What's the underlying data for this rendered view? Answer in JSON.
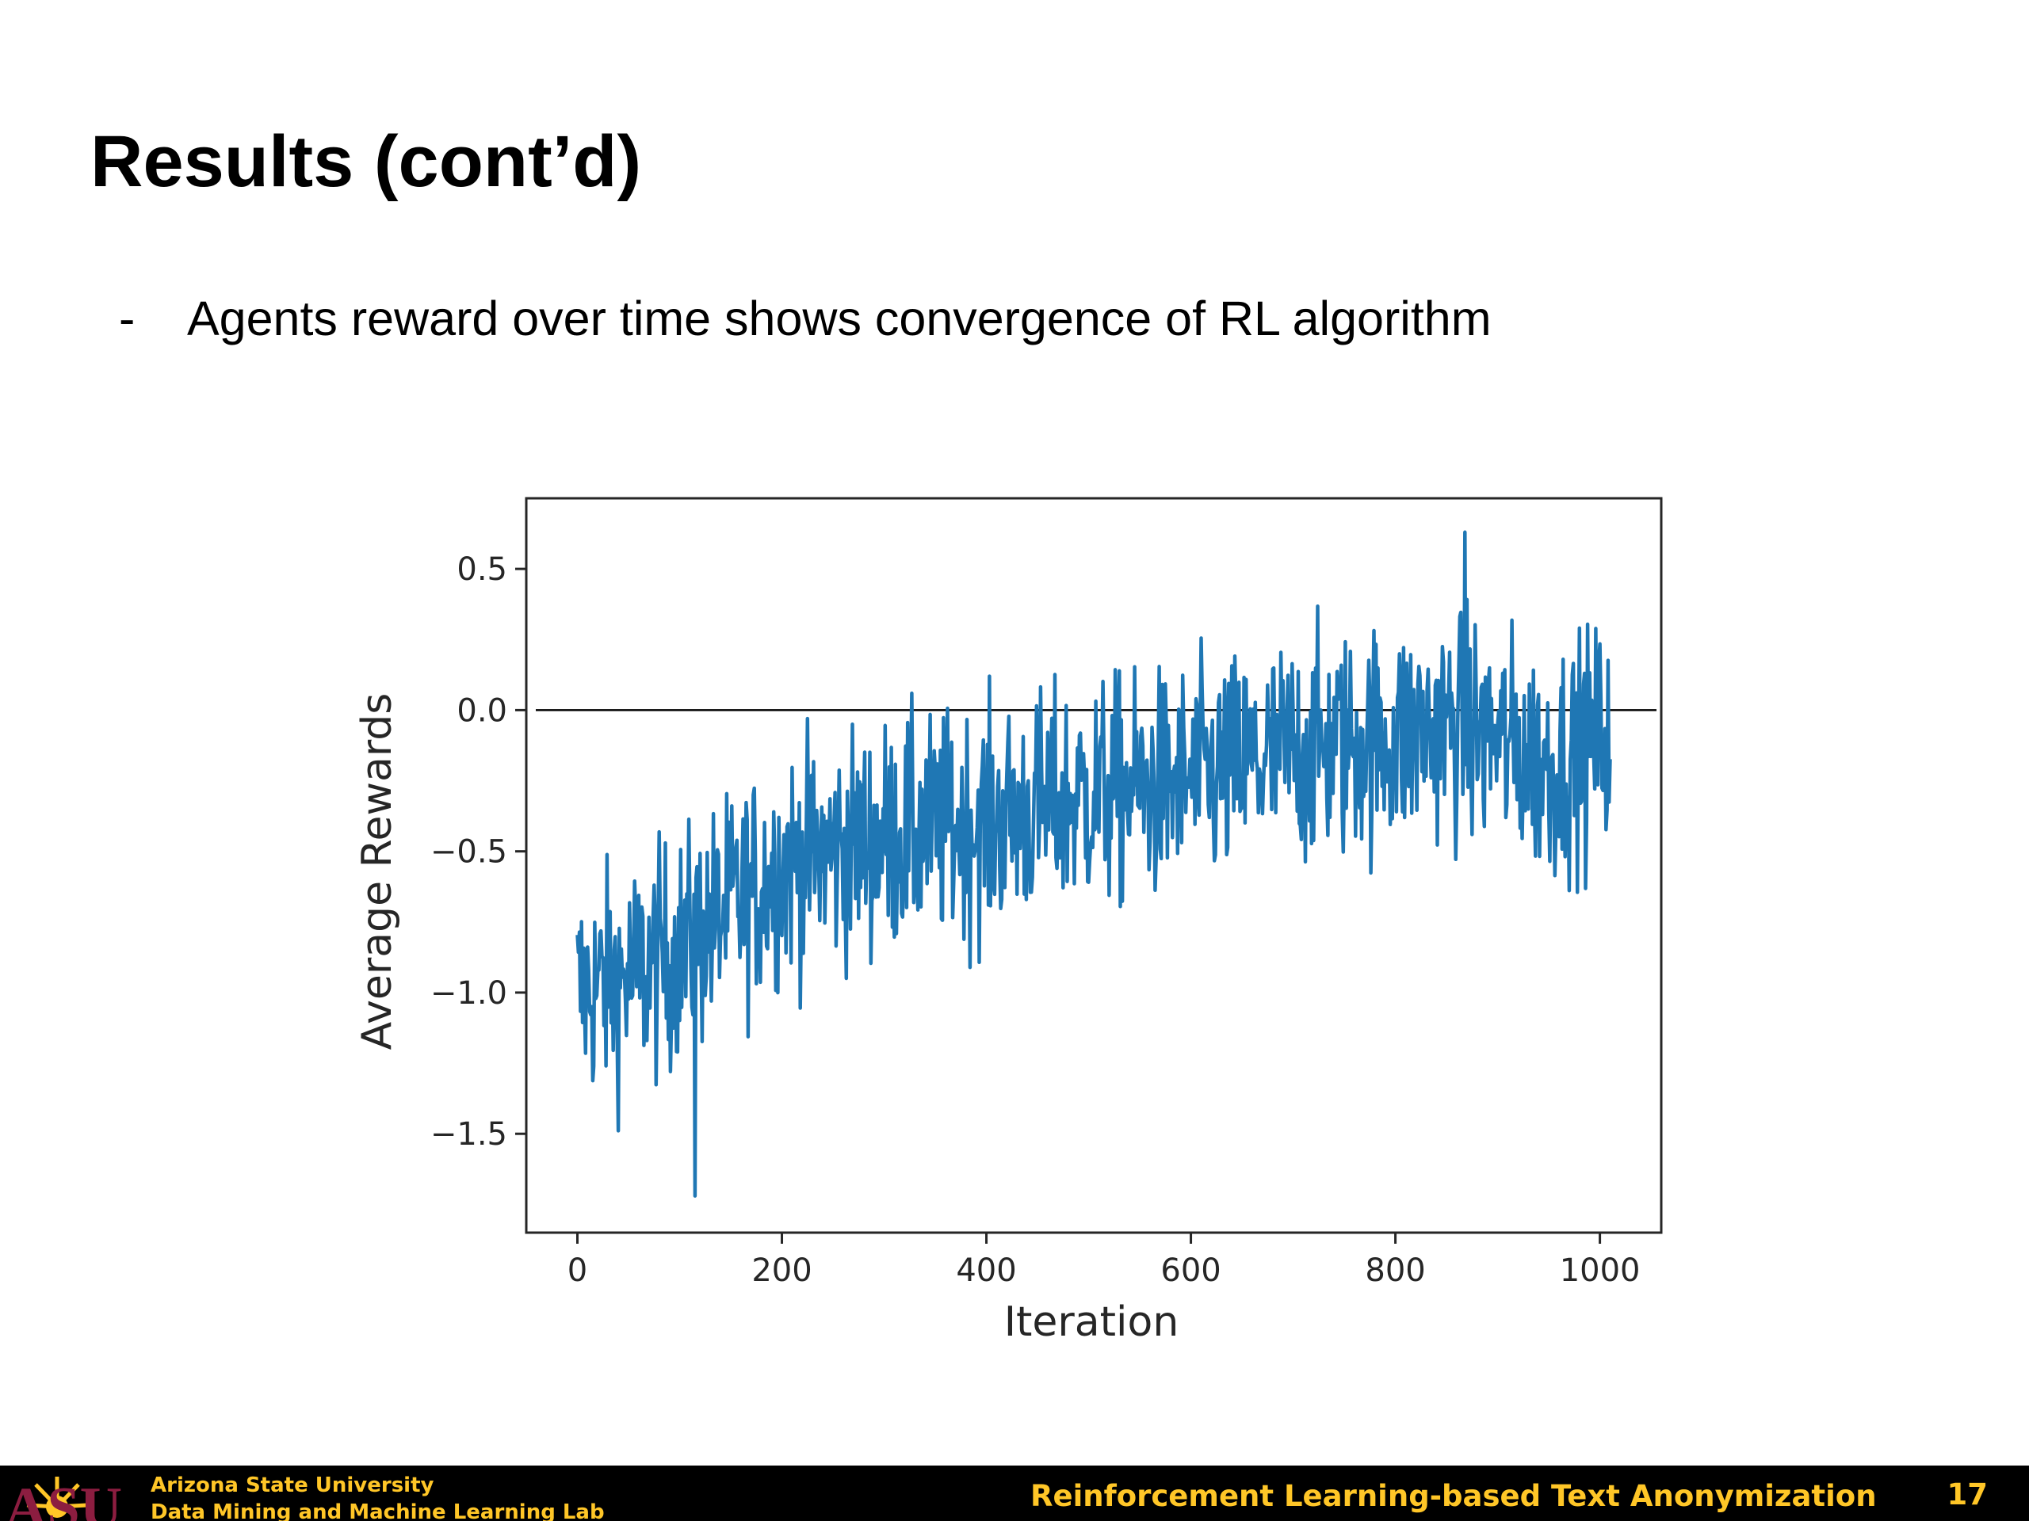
{
  "slide": {
    "title": "Results (cont’d)",
    "bullet_marker": "-",
    "bullet_text": "Agents reward over time shows convergence of RL algorithm"
  },
  "chart_data": {
    "type": "line",
    "title": "",
    "xlabel": "Iteration",
    "ylabel": "Average Rewards",
    "xlim": [
      -50,
      1060
    ],
    "ylim": [
      -1.85,
      0.75
    ],
    "xticks": [
      0,
      200,
      400,
      600,
      800,
      1000
    ],
    "xtick_labels": [
      "0",
      "200",
      "400",
      "600",
      "800",
      "1000"
    ],
    "yticks": [
      0.5,
      0.0,
      -0.5,
      -1.0,
      -1.5
    ],
    "ytick_labels": [
      "0.5",
      "0.0",
      "−0.5",
      "−1.0",
      "−1.5"
    ],
    "grid": false,
    "series_color": "#1f77b4",
    "reference_line": {
      "y": 0.0,
      "color": "#000000"
    },
    "trend_points": {
      "x": [
        0,
        50,
        100,
        150,
        200,
        250,
        300,
        350,
        400,
        450,
        500,
        550,
        600,
        650,
        700,
        750,
        800,
        850,
        900,
        950,
        1000
      ],
      "y": [
        -1.0,
        -0.95,
        -0.85,
        -0.7,
        -0.55,
        -0.5,
        -0.45,
        -0.42,
        -0.4,
        -0.35,
        -0.3,
        -0.28,
        -0.25,
        -0.2,
        -0.15,
        -0.12,
        -0.1,
        -0.05,
        -0.1,
        -0.2,
        -0.1
      ]
    },
    "n_iterations": 1010,
    "min_point": {
      "x": 115,
      "y": -1.72
    },
    "max_point": {
      "x": 868,
      "y": 0.63
    }
  },
  "footer": {
    "org_line1": "Arizona State University",
    "org_line2": "Data Mining and Machine Learning Lab",
    "talk_title": "Reinforcement Learning-based Text Anonymization",
    "page_number": "17",
    "logo_text": "ASU",
    "background": "#000000",
    "text_color": "#FFC627",
    "logo_color": "#8C1D40",
    "logo_icon": "sunburst-icon"
  }
}
